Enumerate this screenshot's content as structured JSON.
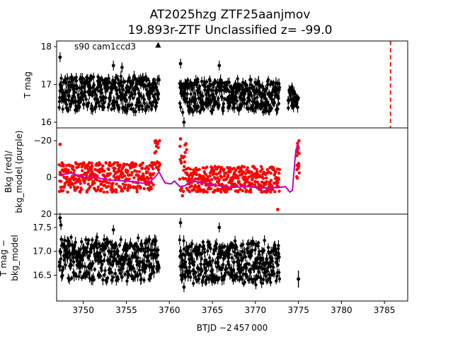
{
  "figure": {
    "title_line1": "AT2025hzg  ZTF25aanjmov",
    "title_line2": "19.893r-ZTF Unclassified z= -99.0",
    "xlabel": "BTJD −2 457 000",
    "annotation": "s90 cam1ccd3"
  },
  "chart_data": [
    {
      "type": "scatter",
      "panel": "top",
      "ylabel": "T mag",
      "xlim": [
        3746.9,
        3787.7
      ],
      "ylim": [
        18.15,
        15.85
      ],
      "y_inverted": true,
      "yticks": [
        16,
        17,
        18
      ],
      "series": [
        {
          "color": "#000000",
          "segments": [
            {
              "x0": 3747.2,
              "x1": 3758.8,
              "ylow": 16.28,
              "yhigh": 17.25,
              "noise": 0.9
            },
            {
              "x0": 3761.2,
              "x1": 3772.8,
              "ylow": 16.25,
              "yhigh": 17.15,
              "noise": 0.9
            },
            {
              "x0": 3773.8,
              "x1": 3775.0,
              "ylow": 16.15,
              "yhigh": 17.1,
              "noise": 0.6
            }
          ],
          "outliers": [
            {
              "x": 3747.3,
              "y": 17.72
            },
            {
              "x": 3753.5,
              "y": 17.5
            },
            {
              "x": 3754.5,
              "y": 17.45
            },
            {
              "x": 3761.3,
              "y": 17.55
            },
            {
              "x": 3765.8,
              "y": 17.5
            },
            {
              "x": 3761.7,
              "y": 16.0
            }
          ]
        },
        {
          "name": "triangle",
          "color": "#000000",
          "points": [
            {
              "x": 3758.7,
              "y": 18.05
            }
          ]
        }
      ],
      "vline": {
        "x": 3785.7,
        "color": "#ff0000",
        "style": "dashed"
      }
    },
    {
      "type": "scatter",
      "panel": "middle",
      "ylabel": "Bkg (red)/ bkg_model (purple)",
      "ylabel_line1": "Bkg (red)/",
      "ylabel_line2": "bkg_model (purple)",
      "xlim": [
        3746.9,
        3787.7
      ],
      "ylim": [
        -27,
        20
      ],
      "yticks": [
        20,
        0,
        -20
      ],
      "series": [
        {
          "name": "Bkg",
          "color": "#ff0000",
          "segments": [
            {
              "x0": 3747.2,
              "x1": 3758.2,
              "ylow": -8,
              "yhigh": 8,
              "noise": 1
            },
            {
              "x0": 3758.3,
              "x1": 3758.9,
              "ylow": -20,
              "yhigh": -4,
              "noise": 1
            },
            {
              "x0": 3761.2,
              "x1": 3762.0,
              "ylow": -20,
              "yhigh": 10,
              "noise": 1
            },
            {
              "x0": 3762.0,
              "x1": 3772.8,
              "ylow": -6,
              "yhigh": 8,
              "noise": 1
            },
            {
              "x0": 3774.8,
              "x1": 3775.1,
              "ylow": -20,
              "yhigh": 6,
              "noise": 1
            }
          ],
          "outliers": [
            {
              "x": 3772.6,
              "y": 17.5
            },
            {
              "x": 3747.3,
              "y": -18
            },
            {
              "x": 3761.3,
              "y": -21
            }
          ]
        },
        {
          "name": "bkg_model",
          "color": "#bf00bf",
          "line": [
            [
              3747.2,
              -1
            ],
            [
              3748.5,
              -2.5
            ],
            [
              3750.0,
              0
            ],
            [
              3751.5,
              0
            ],
            [
              3753.0,
              1.5
            ],
            [
              3754.5,
              1.8
            ],
            [
              3756.0,
              2.5
            ],
            [
              3757.5,
              3.5
            ],
            [
              3758.3,
              0
            ],
            [
              3758.8,
              -3
            ],
            [
              3759.5,
              3
            ],
            [
              3760.2,
              3.5
            ],
            [
              3760.6,
              2
            ],
            [
              3761.2,
              5
            ],
            [
              3761.8,
              4.5
            ],
            [
              3762.5,
              2
            ],
            [
              3763.5,
              2.5
            ],
            [
              3765.0,
              4
            ],
            [
              3767.0,
              5.5
            ],
            [
              3769.0,
              5
            ],
            [
              3771.0,
              5.8
            ],
            [
              3772.8,
              5.5
            ],
            [
              3773.5,
              5
            ],
            [
              3774.0,
              8
            ],
            [
              3774.3,
              7
            ],
            [
              3774.7,
              -15
            ],
            [
              3775.0,
              -18
            ]
          ]
        }
      ]
    },
    {
      "type": "scatter",
      "panel": "bottom",
      "ylabel": "T mag − bkg_model",
      "ylabel_line1": "T mag −",
      "ylabel_line2": "bkg_model",
      "xlim": [
        3746.9,
        3787.7
      ],
      "xticks": [
        3750,
        3755,
        3760,
        3765,
        3770,
        3775,
        3780,
        3785
      ],
      "ylim": [
        17.78,
        15.96
      ],
      "y_inverted": true,
      "yticks": [
        16.5,
        17.0,
        17.5
      ],
      "series": [
        {
          "color": "#000000",
          "segments": [
            {
              "x0": 3747.2,
              "x1": 3758.8,
              "ylow": 16.35,
              "yhigh": 17.3,
              "noise": 0.9
            },
            {
              "x0": 3761.2,
              "x1": 3772.8,
              "ylow": 16.3,
              "yhigh": 17.25,
              "noise": 0.9
            }
          ],
          "outliers": [
            {
              "x": 3747.3,
              "y": 17.7
            },
            {
              "x": 3747.4,
              "y": 17.55
            },
            {
              "x": 3761.3,
              "y": 17.6
            },
            {
              "x": 3753.5,
              "y": 17.45
            },
            {
              "x": 3765.8,
              "y": 17.5
            },
            {
              "x": 3761.7,
              "y": 16.25
            }
          ]
        },
        {
          "name": "errorbar",
          "color": "#000000",
          "points": [
            {
              "x": 3775.0,
              "y": 16.42,
              "err": 0.18
            }
          ]
        }
      ]
    }
  ]
}
